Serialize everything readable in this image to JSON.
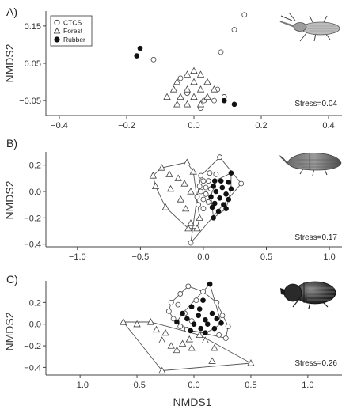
{
  "chart_data": [
    {
      "type": "scatter",
      "panel_label": "A)",
      "ylabel": "NMDS2",
      "xlabel": "",
      "xlim": [
        -0.44,
        0.44
      ],
      "ylim": [
        -0.09,
        0.19
      ],
      "xticks": [
        -0.4,
        -0.2,
        0.0,
        0.2,
        0.4
      ],
      "xtick_labels": [
        "−0.4",
        "−0.2",
        "0.0",
        "0.2",
        "0.4"
      ],
      "yticks": [
        -0.05,
        0.05,
        0.15
      ],
      "ytick_labels": [
        "−0.05",
        "0.05",
        "0.15"
      ],
      "stress_label": "Stress=0.04",
      "insect_icon": "weevil-icon",
      "legend": {
        "placement": "top-left",
        "entries": [
          {
            "label": "CTCS",
            "marker": "open-circle"
          },
          {
            "label": "Forest",
            "marker": "open-triangle"
          },
          {
            "label": "Rubber",
            "marker": "filled-circle"
          }
        ]
      },
      "hulls": false,
      "series": [
        {
          "name": "CTCS",
          "marker": "open-circle",
          "points": [
            [
              0.15,
              0.18
            ],
            [
              0.12,
              0.14
            ],
            [
              0.08,
              0.08
            ],
            [
              -0.12,
              0.06
            ],
            [
              0.07,
              -0.02
            ],
            [
              -0.04,
              0.01
            ],
            [
              -0.02,
              -0.03
            ],
            [
              0.03,
              -0.05
            ],
            [
              0.06,
              -0.05
            ],
            [
              0.09,
              -0.04
            ],
            [
              0.02,
              -0.07
            ]
          ]
        },
        {
          "name": "Forest",
          "marker": "open-triangle",
          "points": [
            [
              0.0,
              0.03
            ],
            [
              -0.02,
              0.02
            ],
            [
              0.02,
              0.02
            ],
            [
              -0.05,
              0.0
            ],
            [
              0.0,
              0.0
            ],
            [
              0.04,
              0.0
            ],
            [
              -0.06,
              -0.02
            ],
            [
              -0.02,
              -0.02
            ],
            [
              0.02,
              -0.02
            ],
            [
              0.06,
              -0.02
            ],
            [
              -0.04,
              -0.04
            ],
            [
              0.0,
              -0.04
            ],
            [
              0.04,
              -0.04
            ],
            [
              -0.08,
              -0.04
            ],
            [
              -0.02,
              -0.06
            ],
            [
              0.02,
              -0.06
            ],
            [
              -0.05,
              -0.06
            ]
          ]
        },
        {
          "name": "Rubber",
          "marker": "filled-circle",
          "points": [
            [
              -0.16,
              0.09
            ],
            [
              -0.17,
              0.07
            ],
            [
              0.09,
              -0.05
            ],
            [
              0.12,
              -0.06
            ]
          ]
        }
      ]
    },
    {
      "type": "scatter",
      "panel_label": "B)",
      "ylabel": "NMDS2",
      "xlabel": "",
      "xlim": [
        -1.25,
        1.1
      ],
      "ylim": [
        -0.42,
        0.3
      ],
      "xticks": [
        -1.0,
        -0.5,
        0.0,
        0.5,
        1.0
      ],
      "xtick_labels": [
        "−1.0",
        "−0.5",
        "0.0",
        "0.5",
        "1.0"
      ],
      "yticks": [
        -0.4,
        -0.2,
        0.0,
        0.2
      ],
      "ytick_labels": [
        "−0.4",
        "−0.2",
        "0.0",
        "0.2"
      ],
      "stress_label": "Stress=0.17",
      "insect_icon": "bark-beetle-icon",
      "hulls": true,
      "series": [
        {
          "name": "CTCS",
          "marker": "open-circle",
          "points": [
            [
              0.13,
              0.26
            ],
            [
              0.05,
              0.14
            ],
            [
              0.1,
              0.13
            ],
            [
              -0.02,
              0.12
            ],
            [
              0.0,
              0.08
            ],
            [
              0.04,
              0.08
            ],
            [
              -0.03,
              0.04
            ],
            [
              0.02,
              0.03
            ],
            [
              0.06,
              0.02
            ],
            [
              -0.02,
              0.0
            ],
            [
              0.02,
              -0.02
            ],
            [
              -0.05,
              -0.04
            ],
            [
              0.0,
              -0.06
            ],
            [
              0.04,
              -0.08
            ],
            [
              -0.04,
              -0.1
            ],
            [
              0.0,
              -0.13
            ],
            [
              0.3,
              0.06
            ],
            [
              -0.1,
              -0.39
            ]
          ]
        },
        {
          "name": "Forest",
          "marker": "open-triangle",
          "points": [
            [
              -0.33,
              0.18
            ],
            [
              -0.13,
              0.22
            ],
            [
              -0.27,
              0.13
            ],
            [
              -0.4,
              0.12
            ],
            [
              -0.2,
              0.1
            ],
            [
              -0.08,
              0.15
            ],
            [
              -0.15,
              0.06
            ],
            [
              -0.38,
              0.04
            ],
            [
              -0.26,
              0.02
            ],
            [
              -0.1,
              0.0
            ],
            [
              -0.18,
              -0.06
            ],
            [
              -0.3,
              -0.12
            ],
            [
              -0.14,
              -0.13
            ],
            [
              -0.03,
              -0.2
            ],
            [
              -0.1,
              -0.24
            ],
            [
              -0.12,
              -0.28
            ],
            [
              -0.05,
              -0.28
            ]
          ]
        },
        {
          "name": "Rubber",
          "marker": "filled-circle",
          "points": [
            [
              0.22,
              0.14
            ],
            [
              0.09,
              0.08
            ],
            [
              0.14,
              0.08
            ],
            [
              0.2,
              0.07
            ],
            [
              0.08,
              0.04
            ],
            [
              0.15,
              0.03
            ],
            [
              0.22,
              0.02
            ],
            [
              0.1,
              0.0
            ],
            [
              0.18,
              -0.02
            ],
            [
              0.06,
              -0.04
            ],
            [
              0.13,
              -0.05
            ],
            [
              0.2,
              -0.06
            ],
            [
              0.09,
              -0.09
            ],
            [
              0.16,
              -0.1
            ],
            [
              0.07,
              -0.12
            ],
            [
              0.18,
              -0.13
            ],
            [
              0.12,
              -0.15
            ],
            [
              0.08,
              -0.2
            ]
          ]
        }
      ]
    },
    {
      "type": "scatter",
      "panel_label": "C)",
      "ylabel": "NMDS2",
      "xlabel": "NMDS1",
      "xlim": [
        -1.3,
        1.3
      ],
      "ylim": [
        -0.47,
        0.4
      ],
      "xticks": [
        -1.0,
        -0.5,
        0.0,
        0.5,
        1.0
      ],
      "xtick_labels": [
        "−1.0",
        "−0.5",
        "0.0",
        "0.5",
        "1.0"
      ],
      "yticks": [
        -0.4,
        -0.2,
        0.0,
        0.2
      ],
      "ytick_labels": [
        "−0.4",
        "−0.2",
        "0.0",
        "0.2"
      ],
      "stress_label": "Stress=0.26",
      "insect_icon": "dung-beetle-icon",
      "hulls": true,
      "series": [
        {
          "name": "CTCS",
          "marker": "open-circle",
          "points": [
            [
              -0.05,
              0.35
            ],
            [
              -0.12,
              0.28
            ],
            [
              0.08,
              0.3
            ],
            [
              -0.2,
              0.2
            ],
            [
              -0.14,
              0.18
            ],
            [
              0.02,
              0.22
            ],
            [
              -0.22,
              0.12
            ],
            [
              -0.08,
              0.1
            ],
            [
              0.2,
              0.2
            ],
            [
              -0.18,
              0.05
            ],
            [
              -0.02,
              0.03
            ],
            [
              0.25,
              0.08
            ],
            [
              -0.12,
              -0.02
            ],
            [
              0.3,
              -0.02
            ],
            [
              -0.06,
              -0.05
            ],
            [
              0.22,
              -0.1
            ],
            [
              0.28,
              -0.13
            ]
          ]
        },
        {
          "name": "Forest",
          "marker": "open-triangle",
          "points": [
            [
              -0.62,
              0.02
            ],
            [
              -0.5,
              0.0
            ],
            [
              -0.38,
              0.02
            ],
            [
              -0.33,
              -0.05
            ],
            [
              -0.25,
              -0.08
            ],
            [
              -0.28,
              -0.15
            ],
            [
              -0.2,
              -0.2
            ],
            [
              -0.1,
              -0.18
            ],
            [
              -0.04,
              -0.14
            ],
            [
              0.05,
              -0.1
            ],
            [
              0.1,
              -0.15
            ],
            [
              -0.15,
              -0.24
            ],
            [
              -0.02,
              -0.22
            ],
            [
              0.18,
              -0.22
            ],
            [
              0.16,
              -0.34
            ],
            [
              0.5,
              -0.36
            ],
            [
              -0.28,
              -0.43
            ]
          ]
        },
        {
          "name": "Rubber",
          "marker": "filled-circle",
          "points": [
            [
              0.14,
              0.37
            ],
            [
              -0.02,
              0.16
            ],
            [
              0.05,
              0.14
            ],
            [
              -0.1,
              0.1
            ],
            [
              0.04,
              0.08
            ],
            [
              0.16,
              0.1
            ],
            [
              -0.06,
              0.05
            ],
            [
              0.1,
              0.04
            ],
            [
              0.2,
              0.05
            ],
            [
              0.0,
              0.0
            ],
            [
              0.12,
              0.0
            ],
            [
              0.24,
              0.01
            ],
            [
              -0.15,
              0.02
            ],
            [
              0.06,
              -0.04
            ],
            [
              0.18,
              -0.04
            ],
            [
              0.1,
              -0.08
            ],
            [
              -0.03,
              -0.06
            ],
            [
              0.08,
              0.22
            ]
          ]
        }
      ]
    }
  ]
}
